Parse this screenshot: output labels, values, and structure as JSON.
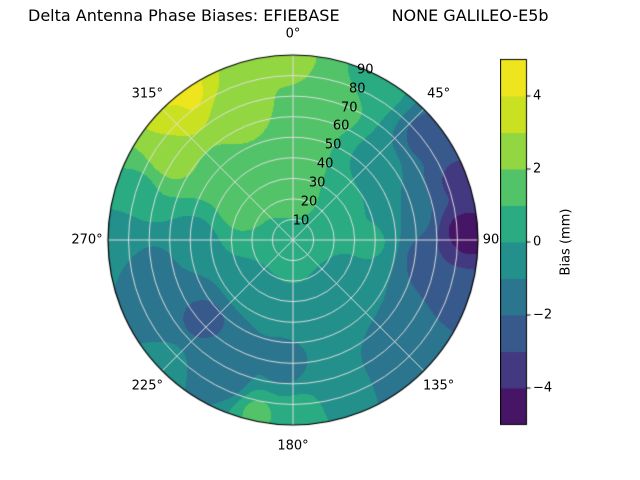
{
  "title": {
    "left": "Delta Antenna Phase Biases: EFIEBASE",
    "right": "NONE GALILEO-E5b"
  },
  "chart_data": {
    "type": "heatmap",
    "subtype": "polar-contourf",
    "title": "Delta Antenna Phase Biases: EFIEBASE    NONE GALILEO-E5b",
    "grid": true,
    "azimuth_ticks": [
      {
        "deg": 0,
        "label": "0°"
      },
      {
        "deg": 45,
        "label": "45°"
      },
      {
        "deg": 90,
        "label": "90"
      },
      {
        "deg": 135,
        "label": "135°"
      },
      {
        "deg": 180,
        "label": "180°"
      },
      {
        "deg": 225,
        "label": "225°"
      },
      {
        "deg": 270,
        "label": "270°"
      },
      {
        "deg": 315,
        "label": "315°"
      }
    ],
    "radial_ticks": [
      {
        "deg": 10,
        "label": "10"
      },
      {
        "deg": 20,
        "label": "20"
      },
      {
        "deg": 30,
        "label": "30"
      },
      {
        "deg": 40,
        "label": "40"
      },
      {
        "deg": 50,
        "label": "50"
      },
      {
        "deg": 60,
        "label": "60"
      },
      {
        "deg": 70,
        "label": "70"
      },
      {
        "deg": 80,
        "label": "80"
      },
      {
        "deg": 90,
        "label": "90"
      }
    ],
    "radial_label_azimuth_deg": 23,
    "radial_max_deg": 90,
    "value_range": [
      -5,
      5
    ],
    "levels": 10,
    "colorbar": {
      "label": "Bias (mm)",
      "position": "right",
      "ticks": [
        {
          "value": -4,
          "label": "−4"
        },
        {
          "value": -2,
          "label": "−2"
        },
        {
          "value": 0,
          "label": "0"
        },
        {
          "value": 2,
          "label": "2"
        },
        {
          "value": 4,
          "label": "4"
        }
      ]
    },
    "colormap": {
      "name": "viridis",
      "stops": [
        [
          0.0,
          "#440154"
        ],
        [
          0.1,
          "#482878"
        ],
        [
          0.2,
          "#3e4a89"
        ],
        [
          0.3,
          "#31688e"
        ],
        [
          0.4,
          "#26828e"
        ],
        [
          0.5,
          "#1f9e89"
        ],
        [
          0.6,
          "#35b779"
        ],
        [
          0.7,
          "#6ece58"
        ],
        [
          0.8,
          "#b5de2b"
        ],
        [
          0.9,
          "#dfe318"
        ],
        [
          1.0,
          "#fde725"
        ]
      ]
    },
    "field_points_azimuth_zenith_bias": [
      [
        0,
        0,
        0.8
      ],
      [
        0,
        20,
        1.2
      ],
      [
        355,
        40,
        2.0
      ],
      [
        0,
        60,
        2.0
      ],
      [
        0,
        88,
        2.2
      ],
      [
        20,
        70,
        1.4
      ],
      [
        30,
        85,
        0.3
      ],
      [
        45,
        25,
        1.0
      ],
      [
        50,
        55,
        -0.8
      ],
      [
        52,
        82,
        -2.4
      ],
      [
        70,
        86,
        -3.2
      ],
      [
        80,
        55,
        -1.0
      ],
      [
        88,
        84,
        -4.6
      ],
      [
        96,
        68,
        -3.0
      ],
      [
        110,
        85,
        -2.4
      ],
      [
        90,
        38,
        0.2
      ],
      [
        130,
        75,
        -1.4
      ],
      [
        140,
        88,
        -1.8
      ],
      [
        135,
        30,
        -0.3
      ],
      [
        160,
        82,
        -0.8
      ],
      [
        178,
        88,
        0.8
      ],
      [
        192,
        86,
        1.2
      ],
      [
        185,
        62,
        -1.3
      ],
      [
        205,
        74,
        -1.6
      ],
      [
        215,
        70,
        -1.8
      ],
      [
        225,
        85,
        -0.6
      ],
      [
        228,
        58,
        -2.4
      ],
      [
        240,
        65,
        -2.0
      ],
      [
        225,
        30,
        -0.2
      ],
      [
        258,
        70,
        -1.5
      ],
      [
        270,
        48,
        -0.5
      ],
      [
        272,
        85,
        -0.5
      ],
      [
        288,
        80,
        0.8
      ],
      [
        300,
        30,
        1.3
      ],
      [
        305,
        72,
        2.6
      ],
      [
        315,
        48,
        1.6
      ],
      [
        318,
        84,
        3.8
      ],
      [
        322,
        89,
        4.8
      ],
      [
        335,
        68,
        2.6
      ],
      [
        345,
        50,
        2.0
      ]
    ]
  }
}
